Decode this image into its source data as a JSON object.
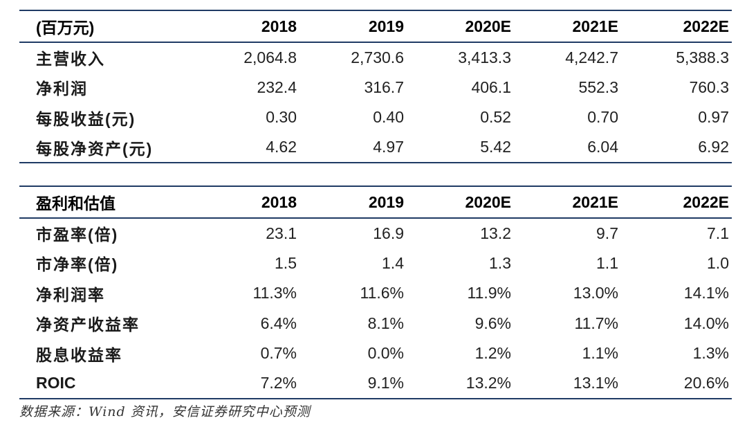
{
  "table1": {
    "header": [
      "(百万元)",
      "2018",
      "2019",
      "2020E",
      "2021E",
      "2022E"
    ],
    "rows": [
      [
        "主营收入",
        "2,064.8",
        "2,730.6",
        "3,413.3",
        "4,242.7",
        "5,388.3"
      ],
      [
        "净利润",
        "232.4",
        "316.7",
        "406.1",
        "552.3",
        "760.3"
      ],
      [
        "每股收益(元)",
        "0.30",
        "0.40",
        "0.52",
        "0.70",
        "0.97"
      ],
      [
        "每股净资产(元)",
        "4.62",
        "4.97",
        "5.42",
        "6.04",
        "6.92"
      ]
    ]
  },
  "table2": {
    "header": [
      "盈利和估值",
      "2018",
      "2019",
      "2020E",
      "2021E",
      "2022E"
    ],
    "rows": [
      [
        "市盈率(倍)",
        "23.1",
        "16.9",
        "13.2",
        "9.7",
        "7.1"
      ],
      [
        "市净率(倍)",
        "1.5",
        "1.4",
        "1.3",
        "1.1",
        "1.0"
      ],
      [
        "净利润率",
        "11.3%",
        "11.6%",
        "11.9%",
        "13.0%",
        "14.1%"
      ],
      [
        "净资产收益率",
        "6.4%",
        "8.1%",
        "9.6%",
        "11.7%",
        "14.0%"
      ],
      [
        "股息收益率",
        "0.7%",
        "0.0%",
        "1.2%",
        "1.1%",
        "1.3%"
      ],
      [
        "ROIC",
        "7.2%",
        "9.1%",
        "13.2%",
        "13.1%",
        "20.6%"
      ]
    ]
  },
  "source": "数据来源：Wind 资讯，安信证券研究中心预测",
  "colors": {
    "rule": "#1f3a64",
    "text": "#111111"
  }
}
